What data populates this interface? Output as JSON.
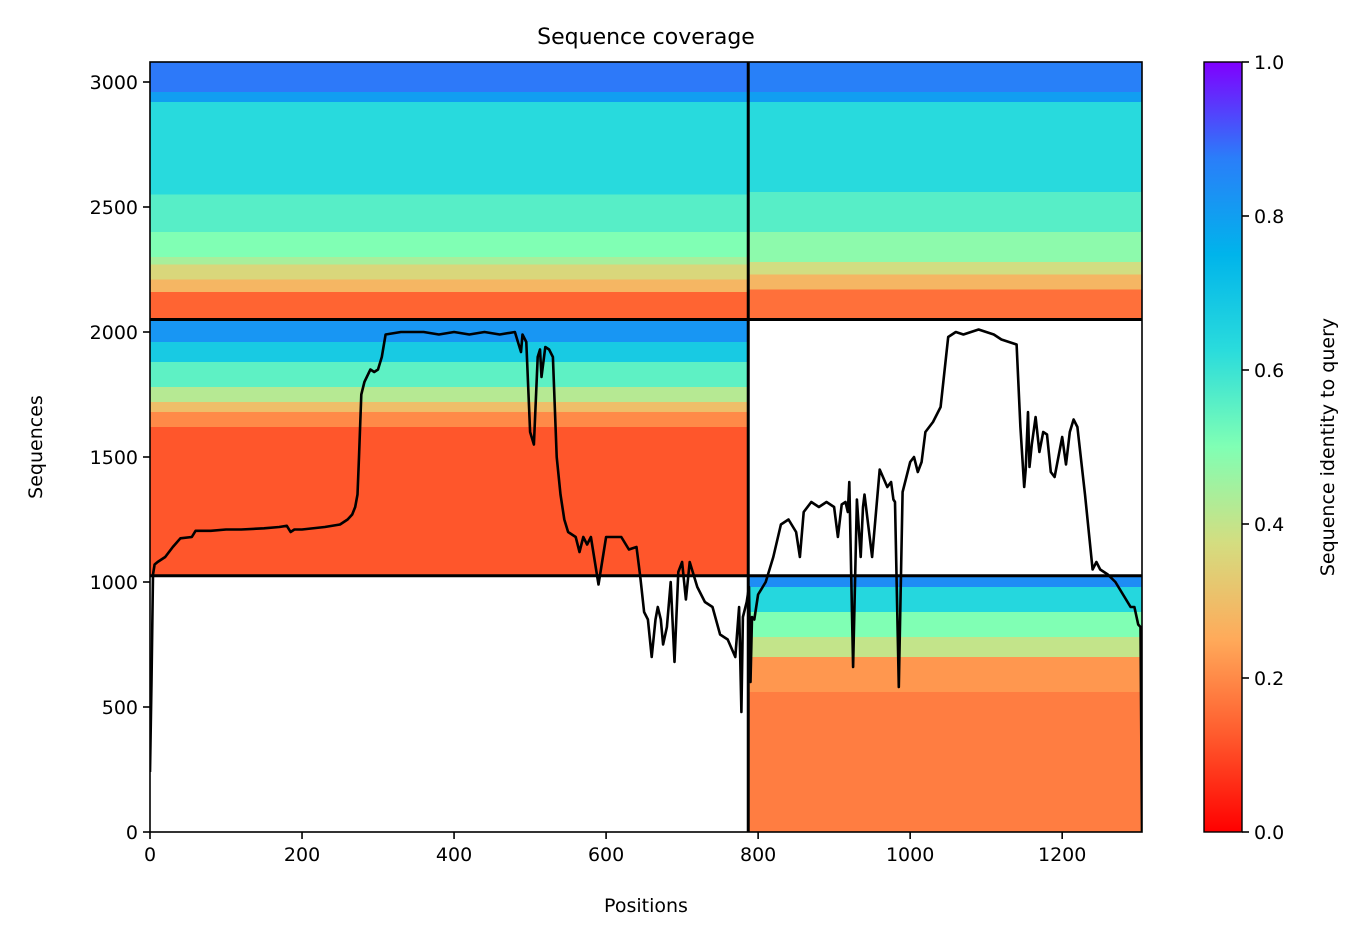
{
  "chart_data": {
    "type": "heatmap",
    "title": "Sequence coverage",
    "xlabel": "Positions",
    "ylabel": "Sequences",
    "xlim": [
      0,
      1305
    ],
    "ylim": [
      0,
      3080
    ],
    "x_ticks": [
      0,
      200,
      400,
      600,
      800,
      1000,
      1200
    ],
    "y_ticks": [
      0,
      500,
      1000,
      1500,
      2000,
      2500,
      3000
    ],
    "grid": false,
    "colorbar": {
      "label": "Sequence identity to query",
      "colormap": "rainbow_r",
      "range": [
        0.0,
        1.0
      ],
      "ticks": [
        0.0,
        0.2,
        0.4,
        0.6,
        0.8,
        1.0
      ],
      "stops": [
        "#ff0000",
        "#ff5a2d",
        "#ffaa5a",
        "#d4dd80",
        "#80ffb4",
        "#2adcdc",
        "#00b4eb",
        "#2a7ef9",
        "#8000ff"
      ]
    },
    "chain_boundaries": {
      "x": [
        787
      ],
      "y": [
        1025,
        2050
      ]
    },
    "blocks": [
      {
        "name": "chain-A-rows",
        "x_range": [
          0,
          787
        ],
        "y_range": [
          2050,
          3080
        ],
        "identity_bands": [
          {
            "y": [
              2960,
              3080
            ],
            "identity": 0.88
          },
          {
            "y": [
              2920,
              2960
            ],
            "identity": 0.8
          },
          {
            "y": [
              2550,
              2920
            ],
            "identity": 0.63
          },
          {
            "y": [
              2400,
              2550
            ],
            "identity": 0.56
          },
          {
            "y": [
              2300,
              2400
            ],
            "identity": 0.5
          },
          {
            "y": [
              2270,
              2300
            ],
            "identity": 0.44
          },
          {
            "y": [
              2210,
              2270
            ],
            "identity": 0.36
          },
          {
            "y": [
              2160,
              2210
            ],
            "identity": 0.28
          },
          {
            "y": [
              2050,
              2160
            ],
            "identity": 0.14
          }
        ]
      },
      {
        "name": "chain-B-rows-upper",
        "x_range": [
          787,
          1305
        ],
        "y_range": [
          2050,
          3080
        ],
        "identity_bands": [
          {
            "y": [
              2960,
              3080
            ],
            "identity": 0.87
          },
          {
            "y": [
              2920,
              2960
            ],
            "identity": 0.8
          },
          {
            "y": [
              2560,
              2920
            ],
            "identity": 0.63
          },
          {
            "y": [
              2400,
              2560
            ],
            "identity": 0.56
          },
          {
            "y": [
              2280,
              2400
            ],
            "identity": 0.48
          },
          {
            "y": [
              2230,
              2280
            ],
            "identity": 0.38
          },
          {
            "y": [
              2170,
              2230
            ],
            "identity": 0.28
          },
          {
            "y": [
              2050,
              2170
            ],
            "identity": 0.16
          }
        ]
      },
      {
        "name": "chain-A-only",
        "x_range": [
          0,
          787
        ],
        "y_range": [
          1025,
          2050
        ],
        "identity_bands": [
          {
            "y": [
              1960,
              2050
            ],
            "identity": 0.82
          },
          {
            "y": [
              1880,
              1960
            ],
            "identity": 0.68
          },
          {
            "y": [
              1780,
              1880
            ],
            "identity": 0.55
          },
          {
            "y": [
              1720,
              1780
            ],
            "identity": 0.42
          },
          {
            "y": [
              1680,
              1720
            ],
            "identity": 0.3
          },
          {
            "y": [
              1620,
              1680
            ],
            "identity": 0.2
          },
          {
            "y": [
              1025,
              1620
            ],
            "identity": 0.12
          }
        ]
      },
      {
        "name": "chain-B-only",
        "x_range": [
          787,
          1305
        ],
        "y_range": [
          0,
          1025
        ],
        "identity_bands": [
          {
            "y": [
              980,
              1025
            ],
            "identity": 0.84
          },
          {
            "y": [
              880,
              980
            ],
            "identity": 0.64
          },
          {
            "y": [
              780,
              880
            ],
            "identity": 0.5
          },
          {
            "y": [
              700,
              780
            ],
            "identity": 0.4
          },
          {
            "y": [
              560,
              700
            ],
            "identity": 0.22
          },
          {
            "y": [
              0,
              560
            ],
            "identity": 0.18
          }
        ]
      }
    ],
    "coverage_line": {
      "name": "Coverage",
      "x": [
        0,
        2,
        4,
        6,
        10,
        15,
        20,
        30,
        40,
        55,
        60,
        80,
        100,
        120,
        150,
        170,
        180,
        185,
        190,
        200,
        230,
        250,
        260,
        266,
        270,
        273,
        275,
        278,
        282,
        290,
        295,
        300,
        305,
        310,
        330,
        360,
        380,
        400,
        420,
        440,
        460,
        480,
        485,
        488,
        490,
        495,
        500,
        505,
        510,
        513,
        515,
        520,
        525,
        530,
        535,
        540,
        545,
        550,
        560,
        565,
        570,
        575,
        580,
        590,
        600,
        620,
        630,
        640,
        645,
        650,
        655,
        660,
        665,
        668,
        672,
        675,
        680,
        685,
        690,
        695,
        700,
        705,
        710,
        720,
        730,
        740,
        750,
        760,
        770,
        775,
        778,
        780,
        785,
        788,
        790,
        792,
        795,
        800,
        810,
        820,
        830,
        840,
        850,
        855,
        860,
        870,
        880,
        890,
        900,
        905,
        910,
        915,
        918,
        920,
        925,
        930,
        935,
        938,
        940,
        950,
        960,
        970,
        975,
        978,
        980,
        985,
        990,
        1000,
        1005,
        1010,
        1015,
        1020,
        1030,
        1040,
        1050,
        1060,
        1070,
        1080,
        1090,
        1100,
        1110,
        1120,
        1130,
        1140,
        1145,
        1150,
        1152,
        1155,
        1157,
        1160,
        1165,
        1170,
        1175,
        1180,
        1185,
        1190,
        1195,
        1200,
        1205,
        1210,
        1215,
        1220,
        1230,
        1235,
        1240,
        1245,
        1250,
        1260,
        1270,
        1280,
        1290,
        1295,
        1300,
        1303,
        1305
      ],
      "y": [
        240,
        600,
        1030,
        1070,
        1080,
        1090,
        1100,
        1140,
        1175,
        1180,
        1205,
        1205,
        1210,
        1210,
        1215,
        1220,
        1225,
        1200,
        1210,
        1210,
        1220,
        1230,
        1250,
        1270,
        1300,
        1350,
        1500,
        1750,
        1800,
        1850,
        1840,
        1850,
        1900,
        1990,
        2000,
        2000,
        1990,
        2000,
        1990,
        2000,
        1990,
        2000,
        1950,
        1920,
        1990,
        1960,
        1600,
        1550,
        1900,
        1930,
        1820,
        1940,
        1930,
        1900,
        1500,
        1350,
        1250,
        1200,
        1180,
        1120,
        1180,
        1150,
        1180,
        990,
        1180,
        1180,
        1130,
        1140,
        1020,
        880,
        850,
        700,
        850,
        900,
        850,
        750,
        820,
        1000,
        680,
        1040,
        1080,
        930,
        1080,
        980,
        920,
        900,
        790,
        770,
        700,
        900,
        480,
        860,
        920,
        980,
        600,
        860,
        850,
        950,
        1000,
        1100,
        1230,
        1250,
        1200,
        1100,
        1280,
        1320,
        1300,
        1320,
        1300,
        1180,
        1310,
        1320,
        1280,
        1400,
        660,
        1330,
        1100,
        1300,
        1350,
        1100,
        1450,
        1380,
        1400,
        1330,
        1320,
        580,
        1360,
        1480,
        1500,
        1440,
        1480,
        1600,
        1640,
        1700,
        1980,
        2000,
        1990,
        2000,
        2010,
        2000,
        1990,
        1970,
        1960,
        1950,
        1620,
        1380,
        1450,
        1680,
        1460,
        1550,
        1660,
        1520,
        1600,
        1590,
        1440,
        1420,
        1500,
        1580,
        1470,
        1600,
        1650,
        1620,
        1350,
        1200,
        1050,
        1080,
        1050,
        1030,
        1000,
        950,
        900,
        900,
        830,
        820,
        0
      ]
    }
  }
}
